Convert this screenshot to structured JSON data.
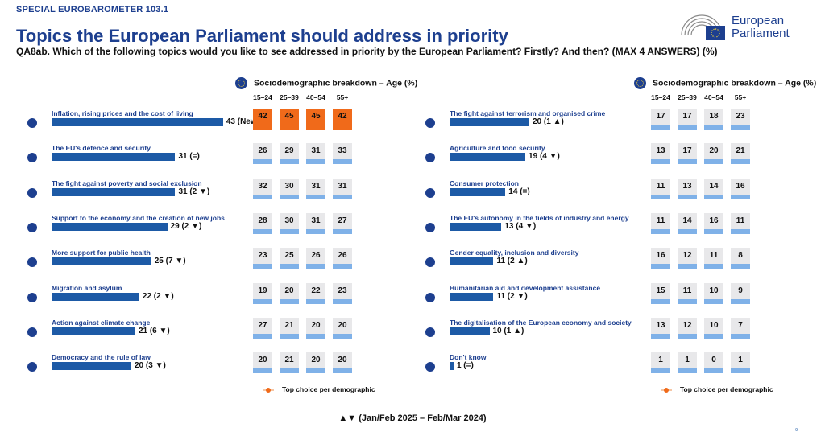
{
  "header": {
    "kicker": "SPECIAL EUROBAROMETER 103.1",
    "title": "Topics the European Parliament should address in priority",
    "question": "QA8ab. Which of the following topics would you like to see addressed in priority by the European Parliament? Firstly? And then? (MAX 4 ANSWERS) (%)"
  },
  "logo": {
    "line1": "European",
    "line2": "Parliament"
  },
  "panel_heading": "Sociodemographic breakdown – Age (%)",
  "legend_label": "Top choice per demographic",
  "footnote": "▲▼ (Jan/Feb 2025 – Feb/Mar 2024)",
  "page_number": "9",
  "colors": {
    "brand_blue": "#1d3f8f",
    "bar_blue": "#1d5aa6",
    "strip_blue": "#7fb1e8",
    "top_orange": "#f06a1a",
    "cell_gray": "#e8e8ea"
  },
  "chart_data": [
    {
      "type": "bar",
      "age_groups": [
        "15-24",
        "25-39",
        "40-54",
        "55+"
      ],
      "xlim": [
        0,
        100
      ],
      "categories": [
        "Inflation, rising prices and the cost of living",
        "The EU's defence and security",
        "The fight against poverty and social exclusion",
        "Support to the economy and the creation of new jobs",
        "More support for public health",
        "Migration and asylum",
        "Action against climate change",
        "Democracy and the rule of law"
      ],
      "values": [
        43,
        31,
        31,
        29,
        25,
        22,
        21,
        20
      ],
      "value_labels": [
        "43 (New)",
        "31 (=)",
        "31 (2 ▼)",
        "29 (2 ▼)",
        "25 (7 ▼)",
        "22 (2 ▼)",
        "21 (6 ▼)",
        "20 (3 ▼)"
      ],
      "age_breakdown": [
        [
          42,
          45,
          45,
          42
        ],
        [
          26,
          29,
          31,
          33
        ],
        [
          32,
          30,
          31,
          31
        ],
        [
          28,
          30,
          31,
          27
        ],
        [
          23,
          25,
          26,
          26
        ],
        [
          19,
          20,
          22,
          23
        ],
        [
          27,
          21,
          20,
          20
        ],
        [
          20,
          21,
          20,
          20
        ]
      ],
      "top_choice_row": 0
    },
    {
      "type": "bar",
      "age_groups": [
        "15-24",
        "25-39",
        "40-54",
        "55+"
      ],
      "xlim": [
        0,
        100
      ],
      "categories": [
        "The fight against terrorism and organised crime",
        "Agriculture and food security",
        "Consumer protection",
        "The EU's autonomy in the fields of industry and energy",
        "Gender equality, inclusion and diversity",
        "Humanitarian aid and development assistance",
        "The digitalisation of the European economy and society",
        "Don't know"
      ],
      "values": [
        20,
        19,
        14,
        13,
        11,
        11,
        10,
        1
      ],
      "value_labels": [
        "20 (1 ▲)",
        "19 (4 ▼)",
        "14 (=)",
        "13 (4 ▼)",
        "11 (2 ▲)",
        "11 (2 ▼)",
        "10 (1 ▲)",
        "1 (=)"
      ],
      "age_breakdown": [
        [
          17,
          17,
          18,
          23
        ],
        [
          13,
          17,
          20,
          21
        ],
        [
          11,
          13,
          14,
          16
        ],
        [
          11,
          14,
          16,
          11
        ],
        [
          16,
          12,
          11,
          8
        ],
        [
          15,
          11,
          10,
          9
        ],
        [
          13,
          12,
          10,
          7
        ],
        [
          1,
          1,
          0,
          1
        ]
      ],
      "top_choice_row": -1
    }
  ]
}
